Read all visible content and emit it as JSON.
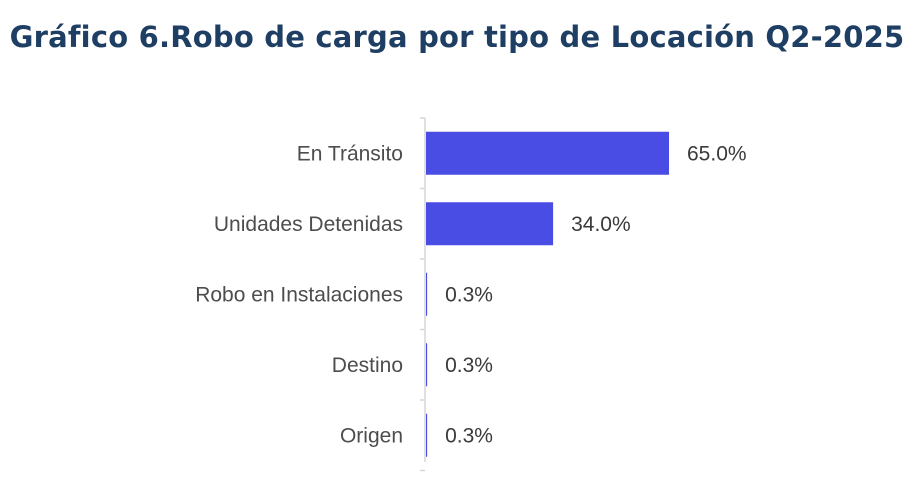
{
  "chart_data": {
    "type": "bar",
    "orientation": "horizontal",
    "title": "Gráfico 6.Robo de carga por tipo de Locación Q2-2025",
    "categories": [
      "En Tránsito",
      "Unidades Detenidas",
      "Robo en Instalaciones",
      "Destino",
      "Origen"
    ],
    "values": [
      65.0,
      34.0,
      0.3,
      0.3,
      0.3
    ],
    "value_labels": [
      "65.0%",
      "34.0%",
      "0.3%",
      "0.3%",
      "0.3%"
    ],
    "xlim": [
      0,
      100
    ],
    "xlabel": "",
    "ylabel": "",
    "grid": false,
    "bar_color": "#4a4de3"
  }
}
